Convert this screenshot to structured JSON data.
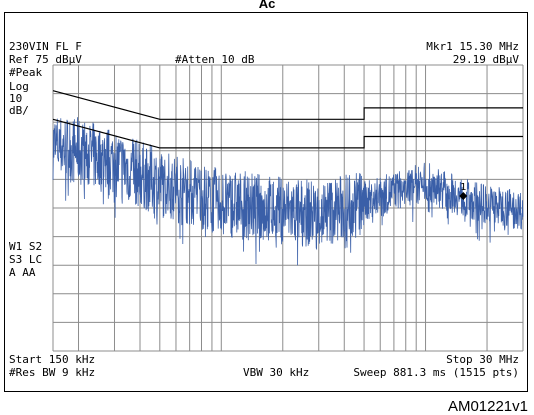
{
  "caption": "Ac",
  "header": {
    "mode": "230VIN FL F",
    "ref": "Ref 75 dBµV",
    "atten": "#Atten 10 dB",
    "marker_label": "Mkr1  15.30 MHz",
    "marker_value": "29.19 dBµV",
    "detector": "#Peak",
    "scale_1": "Log",
    "scale_2": "10",
    "scale_3": "dB/"
  },
  "side_labels": [
    "W1  S2",
    "S3  LC",
    "A   AA"
  ],
  "footer": {
    "start": "Start 150 kHz",
    "stop": "Stop 30 MHz",
    "rbw": "#Res BW 9 kHz",
    "vbw": "VBW 30 kHz",
    "sweep": "Sweep 881.3 ms (1515 pts)"
  },
  "figure_ref": "AM01221v1",
  "marker_id": "1",
  "colors": {
    "trace": "#3a5fa8",
    "grid": "#8c8c8c",
    "limit": "#000000"
  },
  "chart_data": {
    "type": "line",
    "x_scale": "log",
    "xlim_mhz": [
      0.15,
      30
    ],
    "ylim_dbuv": [
      -25,
      75
    ],
    "grid": true,
    "series": [
      {
        "name": "",
        "x_mhz": [
          0.15,
          0.2,
          0.3,
          0.5,
          1,
          3,
          5,
          10,
          15.3,
          20,
          30
        ],
        "y_dbuv": [
          48,
          46,
          42,
          35,
          28,
          24,
          28,
          35,
          29.19,
          27,
          25
        ]
      },
      {
        "name": "",
        "x_mhz": [
          0.15,
          0.5,
          5,
          5,
          30
        ],
        "y_dbuv": [
          66,
          56,
          56,
          60,
          60
        ]
      },
      {
        "name": "",
        "x_mhz": [
          0.15,
          0.5,
          5,
          5,
          30
        ],
        "y_dbuv": [
          56,
          46,
          46,
          50,
          50
        ]
      }
    ]
  }
}
